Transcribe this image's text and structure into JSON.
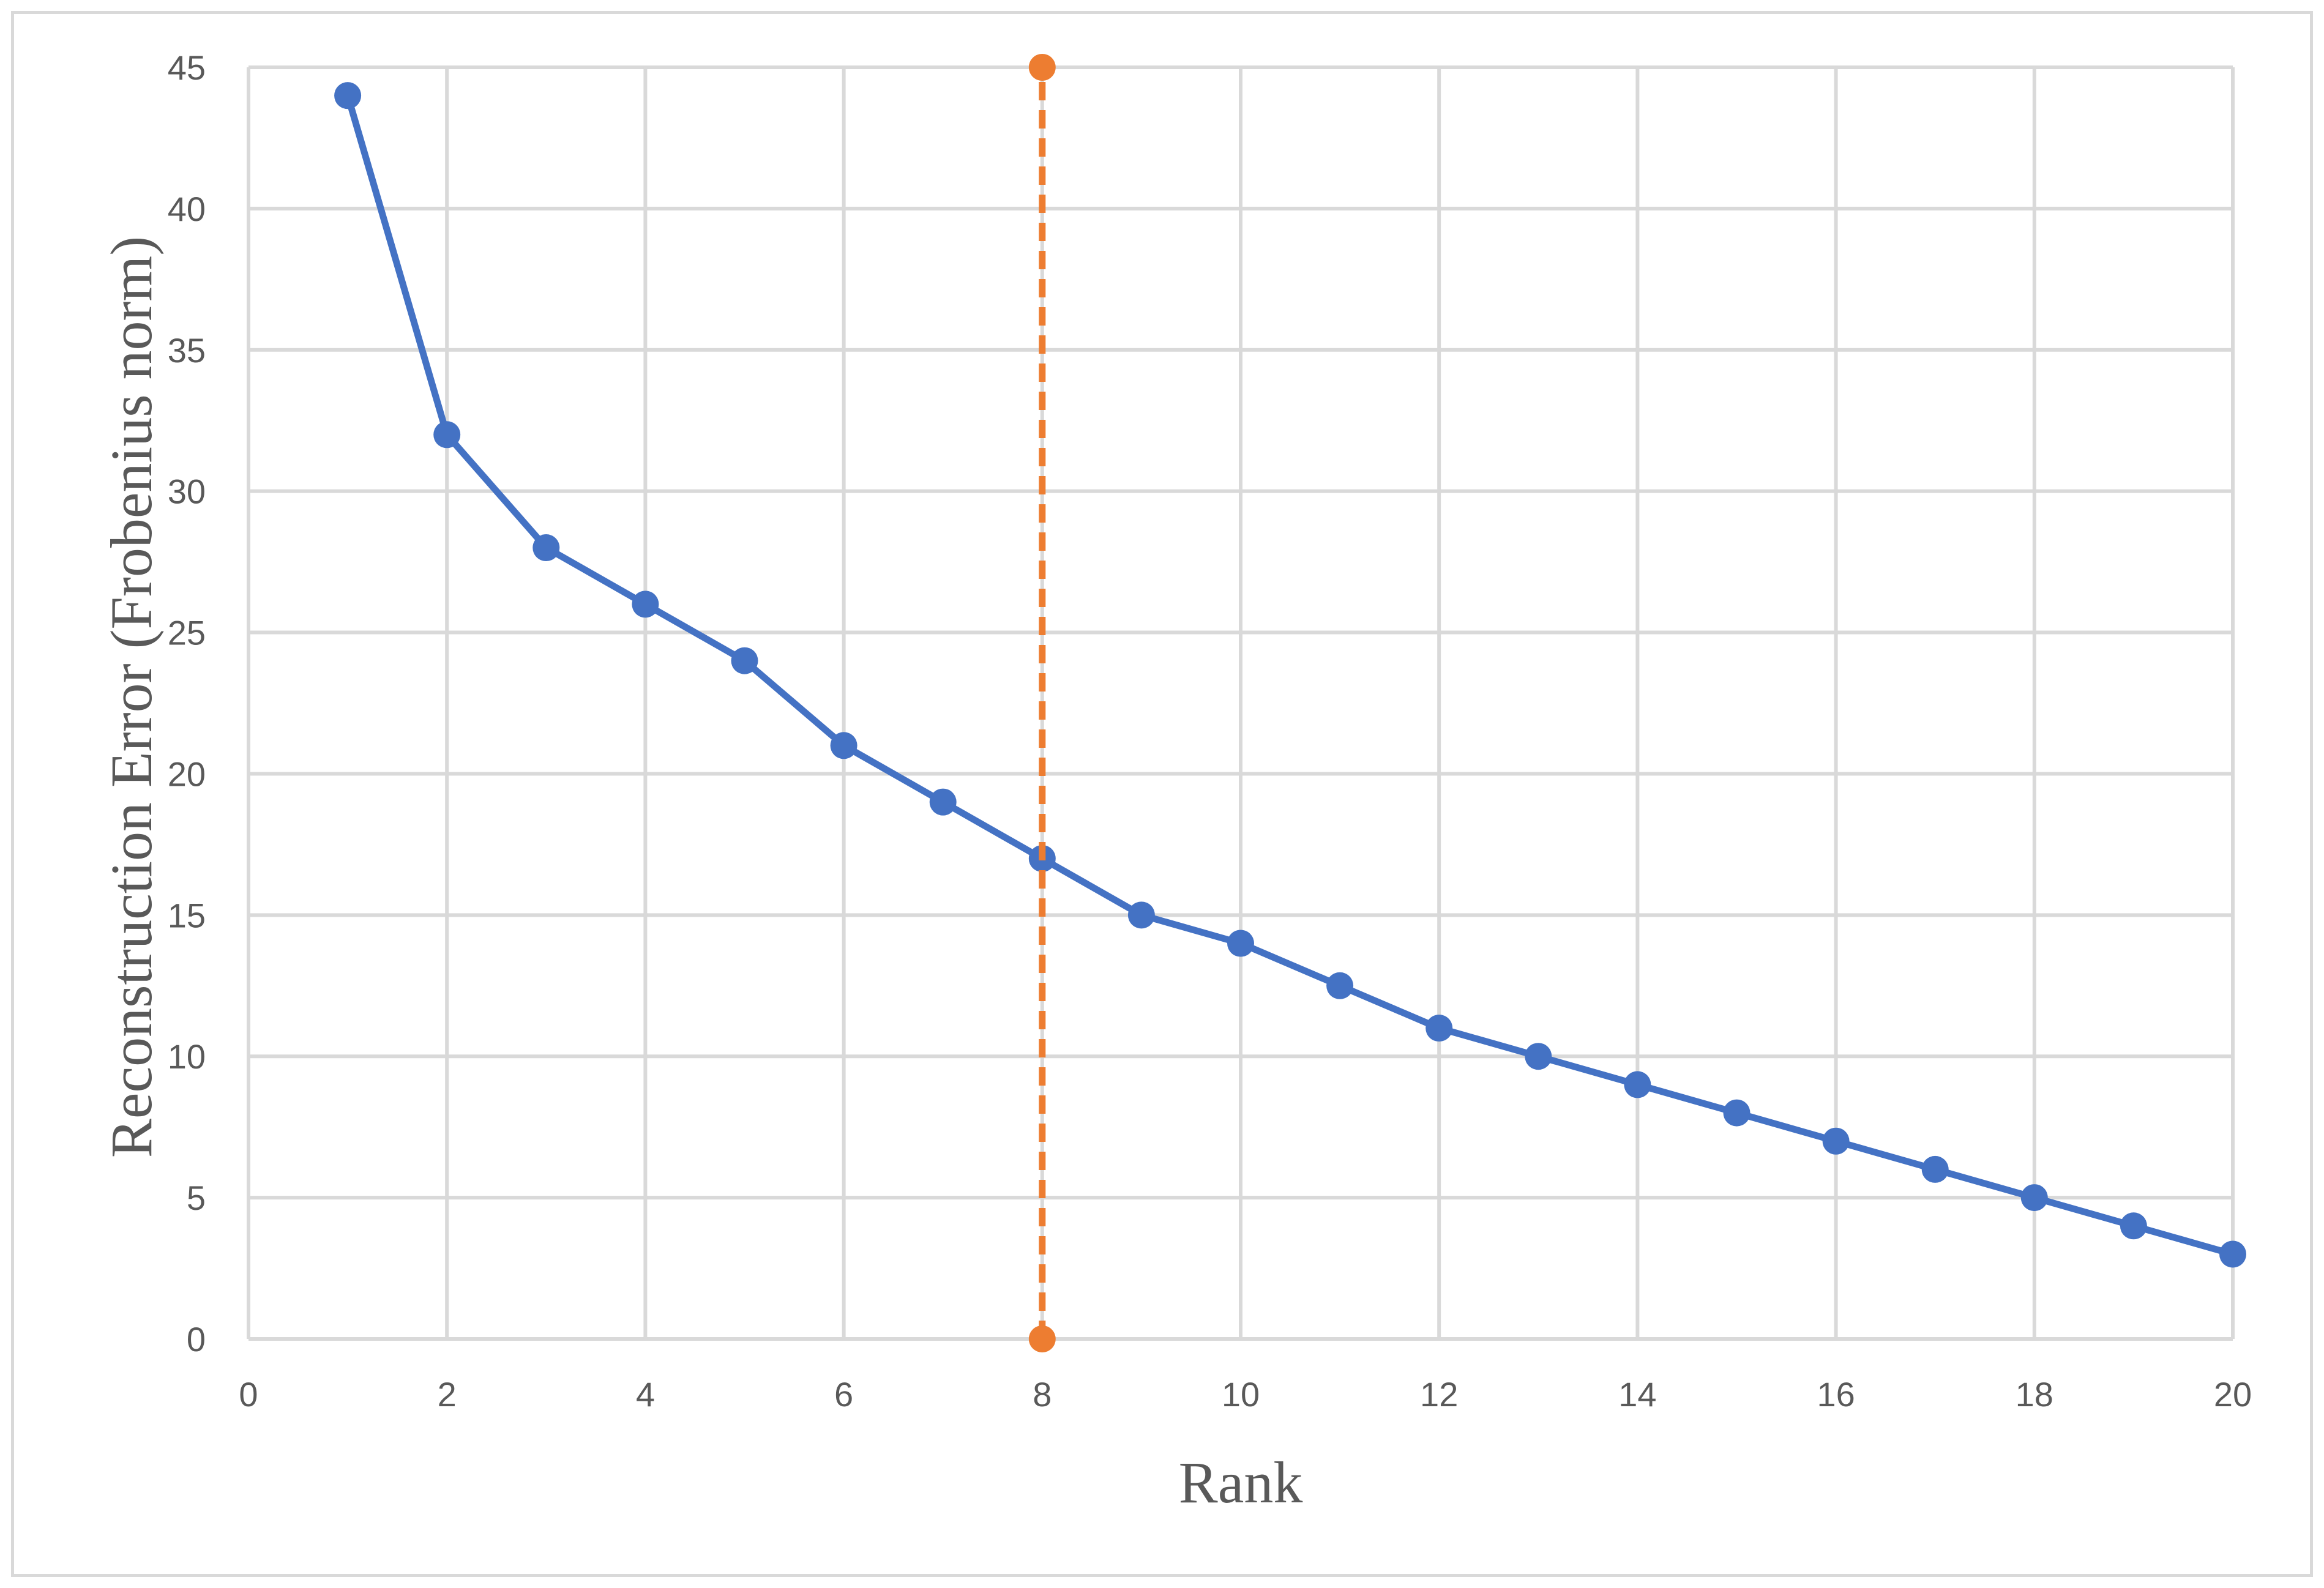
{
  "chart_data": {
    "type": "scatter",
    "title": "",
    "xlabel": "Rank",
    "ylabel": "Reconstruction Error (Frobenius norm)",
    "xlim": [
      0,
      20
    ],
    "ylim": [
      0,
      45
    ],
    "xticks": [
      0,
      2,
      4,
      6,
      8,
      10,
      12,
      14,
      16,
      18,
      20
    ],
    "yticks": [
      0,
      5,
      10,
      15,
      20,
      25,
      30,
      35,
      40,
      45
    ],
    "grid": true,
    "legend": "none",
    "series": [
      {
        "style": "line-markers",
        "color": "#4472c4",
        "x": [
          1,
          2,
          3,
          4,
          5,
          6,
          7,
          8,
          9,
          10,
          11,
          12,
          13,
          14,
          15,
          16,
          17,
          18,
          19,
          20
        ],
        "y": [
          44,
          32,
          28,
          26,
          24,
          21,
          19,
          17,
          15,
          14,
          12.5,
          11,
          10,
          9,
          8,
          7,
          6,
          5,
          4,
          3
        ]
      },
      {
        "style": "dashed-line-markers",
        "color": "#ed7d31",
        "x": [
          8,
          8
        ],
        "y": [
          0,
          45
        ]
      }
    ]
  }
}
